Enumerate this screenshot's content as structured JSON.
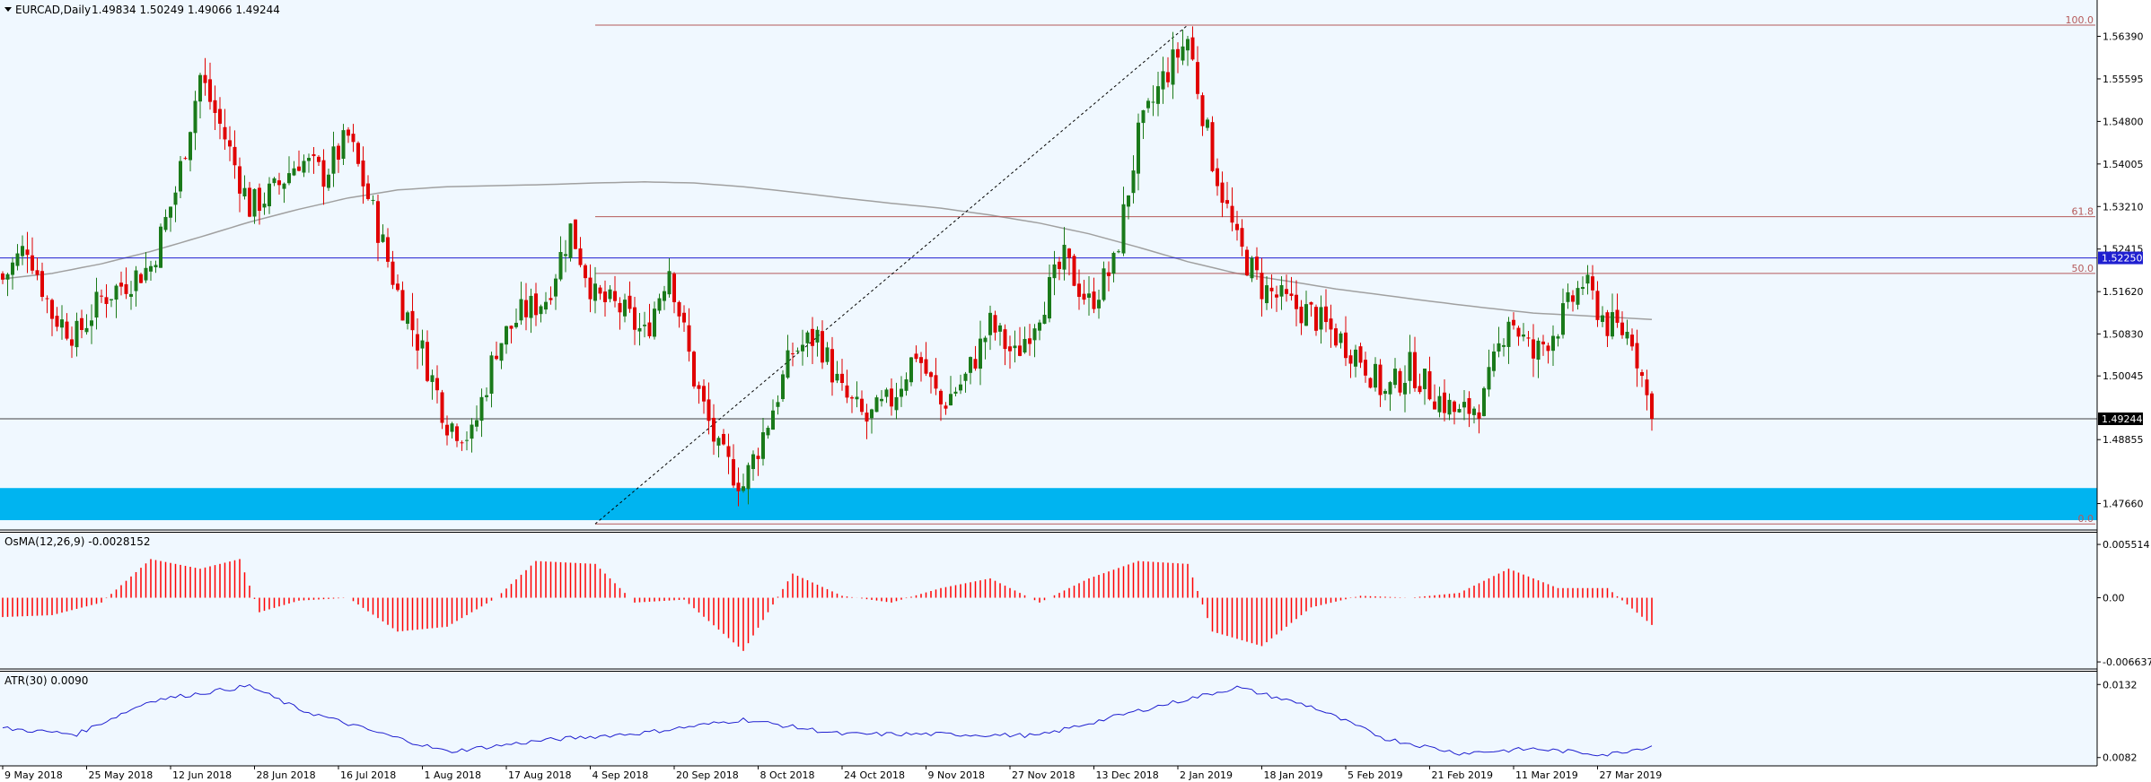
{
  "header": {
    "symbol": "EURCAD,Daily",
    "ohlc": "1.49834 1.50249 1.49066 1.49244"
  },
  "colors": {
    "background": "#f0f8ff",
    "bull_candle": "#1a7a1a",
    "bear_candle": "#e00000",
    "ma_line": "#a0a0a0",
    "fib_line": "#b55a5a",
    "blue_level": "#1f1fd0",
    "zone": "#00b4f0",
    "osma_bars": "#ff0000",
    "atr_line": "#1f1fd0"
  },
  "price_axis": {
    "ticks": [
      "1.56390",
      "1.55595",
      "1.54800",
      "1.54005",
      "1.53210",
      "1.52415",
      "1.51620",
      "1.50830",
      "1.50045",
      "1.48855",
      "1.47660"
    ],
    "current_price_label": "1.49244",
    "blue_level_label": "1.52250"
  },
  "fib_levels": [
    {
      "label": "100.0",
      "price": 1.566
    },
    {
      "label": "61.8",
      "price": 1.5302
    },
    {
      "label": "50.0",
      "price": 1.5196
    },
    {
      "label": "0.0",
      "price": 1.4728
    }
  ],
  "date_axis": {
    "labels": [
      "9 May 2018",
      "25 May 2018",
      "12 Jun 2018",
      "28 Jun 2018",
      "16 Jul 2018",
      "1 Aug 2018",
      "17 Aug 2018",
      "4 Sep 2018",
      "20 Sep 2018",
      "8 Oct 2018",
      "24 Oct 2018",
      "9 Nov 2018",
      "27 Nov 2018",
      "13 Dec 2018",
      "2 Jan 2019",
      "18 Jan 2019",
      "5 Feb 2019",
      "21 Feb 2019",
      "11 Mar 2019",
      "27 Mar 2019"
    ]
  },
  "osma": {
    "label": "OsMA(12,26,9) -0.0028152",
    "ticks": [
      "0.005514",
      "0.00",
      "-0.006637"
    ]
  },
  "atr": {
    "label": "ATR(30) 0.0090",
    "ticks": [
      "0.0132",
      "0.0082"
    ]
  },
  "chart_data": {
    "type": "candlestick",
    "symbol": "EURCAD",
    "timeframe": "Daily",
    "price_range": [
      1.4725,
      1.567
    ],
    "horizontal_levels": {
      "current_price": 1.49244,
      "blue_level": 1.5225,
      "support_zone": [
        1.4735,
        1.4795
      ]
    },
    "close_path": [
      [
        0,
        1.5185
      ],
      [
        5,
        1.525
      ],
      [
        10,
        1.512
      ],
      [
        15,
        1.508
      ],
      [
        20,
        1.515
      ],
      [
        25,
        1.518
      ],
      [
        30,
        1.521
      ],
      [
        35,
        1.535
      ],
      [
        40,
        1.5565
      ],
      [
        45,
        1.545
      ],
      [
        50,
        1.532
      ],
      [
        55,
        1.535
      ],
      [
        60,
        1.541
      ],
      [
        65,
        1.538
      ],
      [
        70,
        1.545
      ],
      [
        75,
        1.531
      ],
      [
        80,
        1.516
      ],
      [
        85,
        1.505
      ],
      [
        90,
        1.492
      ],
      [
        95,
        1.489
      ],
      [
        100,
        1.506
      ],
      [
        105,
        1.512
      ],
      [
        110,
        1.515
      ],
      [
        115,
        1.528
      ],
      [
        120,
        1.515
      ],
      [
        125,
        1.513
      ],
      [
        130,
        1.508
      ],
      [
        135,
        1.521
      ],
      [
        140,
        1.5
      ],
      [
        145,
        1.486
      ],
      [
        150,
        1.48
      ],
      [
        155,
        1.492
      ],
      [
        160,
        1.505
      ],
      [
        165,
        1.508
      ],
      [
        170,
        1.497
      ],
      [
        175,
        1.492
      ],
      [
        180,
        1.496
      ],
      [
        185,
        1.505
      ],
      [
        190,
        1.495
      ],
      [
        195,
        1.5
      ],
      [
        200,
        1.51
      ],
      [
        205,
        1.504
      ],
      [
        210,
        1.513
      ],
      [
        215,
        1.522
      ],
      [
        220,
        1.514
      ],
      [
        225,
        1.521
      ],
      [
        230,
        1.545
      ],
      [
        235,
        1.556
      ],
      [
        240,
        1.5635
      ],
      [
        245,
        1.541
      ],
      [
        250,
        1.525
      ],
      [
        255,
        1.517
      ],
      [
        260,
        1.514
      ],
      [
        265,
        1.512
      ],
      [
        270,
        1.508
      ],
      [
        275,
        1.504
      ],
      [
        280,
        1.497
      ],
      [
        285,
        1.502
      ],
      [
        290,
        1.497
      ],
      [
        295,
        1.493
      ],
      [
        300,
        1.496
      ],
      [
        305,
        1.512
      ],
      [
        310,
        1.504
      ],
      [
        315,
        1.51
      ],
      [
        320,
        1.518
      ],
      [
        325,
        1.51
      ],
      [
        330,
        1.508
      ],
      [
        334,
        1.49244
      ]
    ],
    "ma_path": [
      [
        0,
        1.5186
      ],
      [
        10,
        1.5196
      ],
      [
        20,
        1.5214
      ],
      [
        30,
        1.5237
      ],
      [
        40,
        1.5264
      ],
      [
        50,
        1.5292
      ],
      [
        60,
        1.5316
      ],
      [
        70,
        1.5337
      ],
      [
        80,
        1.5352
      ],
      [
        90,
        1.5358
      ],
      [
        100,
        1.536
      ],
      [
        110,
        1.5362
      ],
      [
        120,
        1.5365
      ],
      [
        130,
        1.5367
      ],
      [
        140,
        1.5365
      ],
      [
        150,
        1.5358
      ],
      [
        160,
        1.5348
      ],
      [
        170,
        1.5337
      ],
      [
        180,
        1.5327
      ],
      [
        190,
        1.5318
      ],
      [
        200,
        1.5305
      ],
      [
        210,
        1.529
      ],
      [
        220,
        1.527
      ],
      [
        230,
        1.5245
      ],
      [
        240,
        1.5218
      ],
      [
        250,
        1.5196
      ],
      [
        260,
        1.5182
      ],
      [
        270,
        1.5167
      ],
      [
        280,
        1.5155
      ],
      [
        290,
        1.5143
      ],
      [
        300,
        1.5132
      ],
      [
        310,
        1.5122
      ],
      [
        320,
        1.5117
      ],
      [
        334,
        1.511
      ]
    ],
    "diagonal_trendline": {
      "from": [
        120,
        1.4728
      ],
      "to": [
        240,
        1.566
      ]
    },
    "osma_path": [
      [
        0,
        -0.002
      ],
      [
        10,
        -0.0018
      ],
      [
        20,
        -0.0005
      ],
      [
        30,
        0.004
      ],
      [
        40,
        0.003
      ],
      [
        48,
        0.004
      ],
      [
        52,
        -0.0015
      ],
      [
        60,
        -0.0003
      ],
      [
        70,
        0.0
      ],
      [
        80,
        -0.0035
      ],
      [
        90,
        -0.003
      ],
      [
        100,
        0.0
      ],
      [
        108,
        0.0038
      ],
      [
        120,
        0.0035
      ],
      [
        128,
        -0.0005
      ],
      [
        138,
        -0.0002
      ],
      [
        150,
        -0.0055
      ],
      [
        160,
        0.0025
      ],
      [
        170,
        0.0002
      ],
      [
        180,
        -0.0005
      ],
      [
        190,
        0.001
      ],
      [
        200,
        0.002
      ],
      [
        210,
        -0.0005
      ],
      [
        220,
        0.002
      ],
      [
        230,
        0.0038
      ],
      [
        240,
        0.0035
      ],
      [
        245,
        -0.0035
      ],
      [
        255,
        -0.005
      ],
      [
        265,
        -0.001
      ],
      [
        275,
        0.0002
      ],
      [
        285,
        0.0
      ],
      [
        295,
        0.0005
      ],
      [
        305,
        0.003
      ],
      [
        315,
        0.001
      ],
      [
        325,
        0.001
      ],
      [
        334,
        -0.0028152
      ]
    ],
    "osma_range": [
      -0.007,
      0.0058
    ],
    "atr_path": [
      [
        0,
        0.0102
      ],
      [
        15,
        0.0098
      ],
      [
        30,
        0.0121
      ],
      [
        50,
        0.0131
      ],
      [
        60,
        0.0115
      ],
      [
        75,
        0.01
      ],
      [
        90,
        0.0086
      ],
      [
        110,
        0.0094
      ],
      [
        130,
        0.0099
      ],
      [
        150,
        0.0108
      ],
      [
        170,
        0.0098
      ],
      [
        190,
        0.0098
      ],
      [
        210,
        0.0097
      ],
      [
        230,
        0.0114
      ],
      [
        250,
        0.013
      ],
      [
        265,
        0.0117
      ],
      [
        280,
        0.0095
      ],
      [
        295,
        0.0085
      ],
      [
        310,
        0.0088
      ],
      [
        325,
        0.0084
      ],
      [
        334,
        0.009
      ]
    ],
    "atr_range": [
      0.008,
      0.0134
    ]
  }
}
